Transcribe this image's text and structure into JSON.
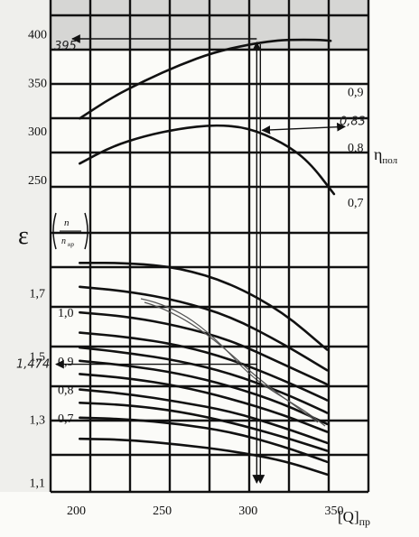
{
  "chart_data": {
    "type": "line",
    "title": "",
    "x": {
      "label": "[Q]",
      "label_sub": "пр",
      "ticks": [
        "200",
        "250",
        "300",
        "350"
      ],
      "range": [
        185,
        370
      ]
    },
    "top_panel": {
      "left_axis_ticks": [
        "400",
        "350",
        "300",
        "250"
      ],
      "left_range": [
        195,
        435
      ],
      "right_axis_label": "η",
      "right_axis_label_sub": "пол",
      "right_axis_ticks": [
        "0,9",
        "0,8",
        "0,7"
      ],
      "right_range": [
        0.645,
        1.065
      ],
      "series": [
        {
          "axis": "left",
          "points": [
            [
              202,
              313
            ],
            [
              220,
              334
            ],
            [
              240,
              352
            ],
            [
              260,
              368
            ],
            [
              280,
              381
            ],
            [
              300,
              389
            ],
            [
              315,
              393
            ],
            [
              325,
              394
            ],
            [
              340,
              394
            ],
            [
              348,
              393
            ]
          ]
        },
        {
          "axis": "right",
          "points": [
            [
              202,
              0.77
            ],
            [
              220,
              0.8
            ],
            [
              240,
              0.82
            ],
            [
              260,
              0.833
            ],
            [
              280,
              0.84
            ],
            [
              300,
              0.835
            ],
            [
              320,
              0.808
            ],
            [
              335,
              0.775
            ],
            [
              350,
              0.715
            ]
          ]
        }
      ]
    },
    "bottom_panel": {
      "left_axis_label": "ε",
      "left_axis_ticks": [
        "1,7",
        "1,5",
        "1,3",
        "1,1"
      ],
      "left_range": [
        1.07,
        1.89
      ],
      "inner_axis_label": "(n / n_нр)",
      "inner_axis_ticks": [
        "1,0",
        "0,9",
        "0,8",
        "0,7"
      ],
      "curves": [
        {
          "points": [
            [
              202,
              1.795
            ],
            [
              230,
              1.795
            ],
            [
              260,
              1.78
            ],
            [
              290,
              1.73
            ],
            [
              320,
              1.64
            ],
            [
              346,
              1.52
            ]
          ]
        },
        {
          "points": [
            [
              202,
              1.719
            ],
            [
              230,
              1.705
            ],
            [
              260,
              1.675
            ],
            [
              290,
              1.625
            ],
            [
              320,
              1.54
            ],
            [
              346,
              1.455
            ]
          ]
        },
        {
          "points": [
            [
              202,
              1.638
            ],
            [
              230,
              1.625
            ],
            [
              260,
              1.595
            ],
            [
              290,
              1.55
            ],
            [
              320,
              1.475
            ],
            [
              346,
              1.41
            ]
          ]
        },
        {
          "points": [
            [
              202,
              1.574
            ],
            [
              230,
              1.56
            ],
            [
              260,
              1.535
            ],
            [
              290,
              1.49
            ],
            [
              320,
              1.425
            ],
            [
              346,
              1.36
            ]
          ]
        },
        {
          "points": [
            [
              202,
              1.527
            ],
            [
              230,
              1.51
            ],
            [
              260,
              1.485
            ],
            [
              290,
              1.445
            ],
            [
              320,
              1.385
            ],
            [
              346,
              1.32
            ]
          ]
        },
        {
          "points": [
            [
              202,
              1.485
            ],
            [
              230,
              1.47
            ],
            [
              260,
              1.445
            ],
            [
              290,
              1.405
            ],
            [
              320,
              1.35
            ],
            [
              346,
              1.285
            ]
          ]
        },
        {
          "points": [
            [
              202,
              1.443
            ],
            [
              230,
              1.43
            ],
            [
              260,
              1.405
            ],
            [
              290,
              1.365
            ],
            [
              320,
              1.315
            ],
            [
              346,
              1.26
            ]
          ]
        },
        {
          "points": [
            [
              202,
              1.394
            ],
            [
              230,
              1.38
            ],
            [
              260,
              1.355
            ],
            [
              290,
              1.325
            ],
            [
              320,
              1.275
            ],
            [
              346,
              1.225
            ]
          ]
        },
        {
          "points": [
            [
              202,
              1.352
            ],
            [
              230,
              1.345
            ],
            [
              260,
              1.325
            ],
            [
              290,
              1.29
            ],
            [
              320,
              1.245
            ],
            [
              346,
              1.2
            ]
          ]
        },
        {
          "points": [
            [
              202,
              1.305
            ],
            [
              230,
              1.3
            ],
            [
              260,
              1.285
            ],
            [
              290,
              1.26
            ],
            [
              320,
              1.215
            ],
            [
              346,
              1.165
            ]
          ]
        },
        {
          "points": [
            [
              202,
              1.238
            ],
            [
              230,
              1.235
            ],
            [
              260,
              1.22
            ],
            [
              290,
              1.2
            ],
            [
              320,
              1.17
            ],
            [
              346,
              1.125
            ]
          ]
        }
      ]
    },
    "annotations": {
      "top_left_value": "395",
      "eta_value": "0,83",
      "epsilon_value": "1,474",
      "operating_x": 305,
      "operating_y_top": 395,
      "operating_eta": 0.83,
      "operating_epsilon": 1.474
    },
    "grid": true
  }
}
